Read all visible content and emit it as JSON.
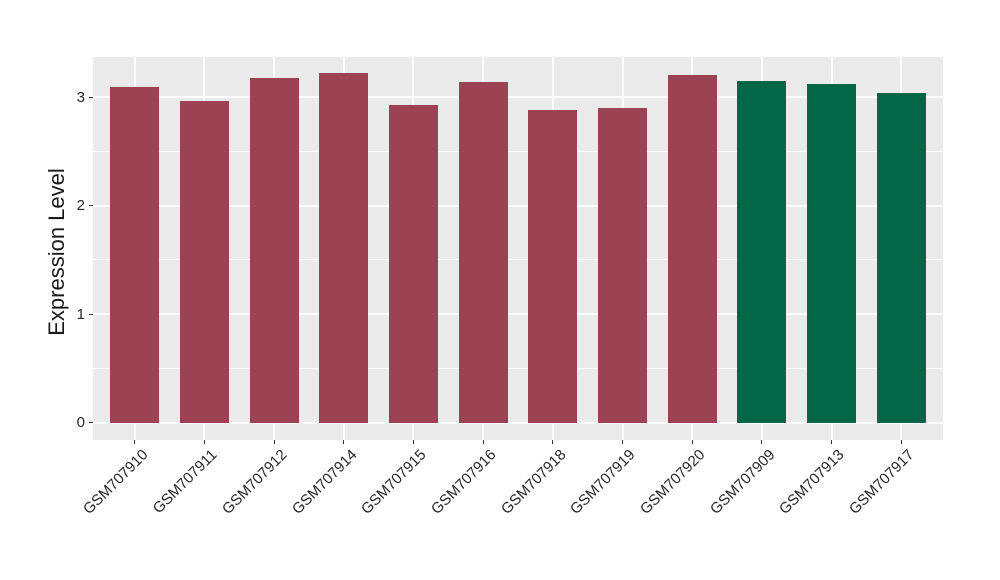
{
  "chart_data": {
    "type": "bar",
    "title": "",
    "xlabel": "",
    "ylabel": "Expression Level",
    "categories": [
      "GSM707910",
      "GSM707911",
      "GSM707912",
      "GSM707914",
      "GSM707915",
      "GSM707916",
      "GSM707918",
      "GSM707919",
      "GSM707920",
      "GSM707909",
      "GSM707913",
      "GSM707917"
    ],
    "values": [
      3.09,
      2.96,
      3.18,
      3.22,
      2.93,
      3.14,
      2.88,
      2.9,
      3.2,
      3.15,
      3.12,
      3.04
    ],
    "groups": [
      "maroon",
      "maroon",
      "maroon",
      "maroon",
      "maroon",
      "maroon",
      "maroon",
      "maroon",
      "maroon",
      "green",
      "green",
      "green"
    ],
    "group_colors": {
      "maroon": "#9B4352",
      "green": "#036647"
    },
    "yticks": [
      0,
      1,
      2,
      3
    ],
    "ylim": [
      -0.161,
      3.369
    ],
    "grid": {
      "major": [
        0,
        1,
        2,
        3
      ],
      "minor": [
        0.5,
        1.5,
        2.5
      ],
      "color": "#FFFFFF"
    },
    "panel_bg": "#EBEBEB",
    "legend": "none",
    "x_label_rotation_deg": -45
  }
}
